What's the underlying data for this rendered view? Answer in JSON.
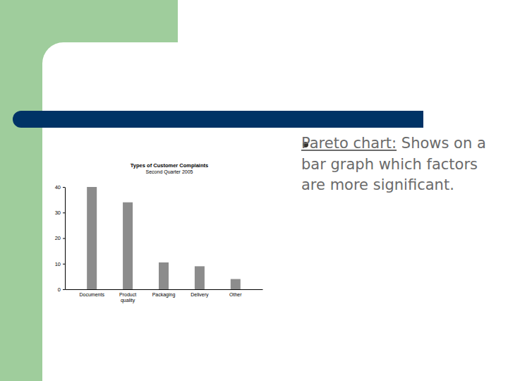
{
  "chart_data": {
    "type": "bar",
    "title": "Types of Customer Complaints",
    "subtitle": "Second Quarter 2005",
    "categories": [
      "Documents",
      "Product quality",
      "Packaging",
      "Delivery",
      "Other"
    ],
    "values": [
      40,
      34,
      10.5,
      9,
      4
    ],
    "color": "#8c8c8c",
    "ylim": [
      0,
      40
    ],
    "yticks": [
      0,
      10,
      20,
      30,
      40
    ],
    "grid": false
  },
  "slide": {
    "bullet": {
      "term": "Pareto chart:",
      "text": "Shows on a bar graph which factors are more significant."
    }
  }
}
